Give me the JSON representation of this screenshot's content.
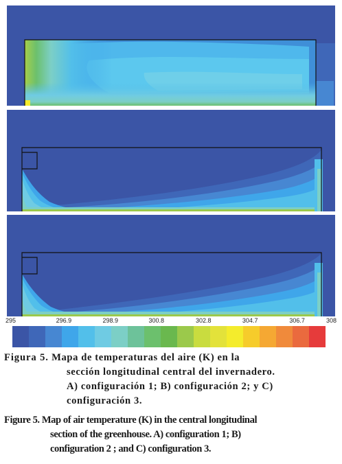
{
  "colorbar": {
    "tick_labels": [
      "295",
      "296.9",
      "298.9",
      "300.8",
      "302.8",
      "304.7",
      "306.7",
      "308"
    ],
    "colors": [
      "#3b55a6",
      "#3f67b8",
      "#4787d2",
      "#3fa6ea",
      "#52bfea",
      "#6fcbe3",
      "#7ccfc6",
      "#6dc29a",
      "#6cc06d",
      "#6ab84e",
      "#9bc94b",
      "#c9dc3f",
      "#e3e23a",
      "#f4ec2c",
      "#f6cc2b",
      "#f5a833",
      "#f08a3b",
      "#ea6a3e",
      "#e63b3b"
    ]
  },
  "panels": {
    "a": {
      "label": "A"
    },
    "b": {
      "label": "B"
    },
    "c": {
      "label": "C"
    }
  },
  "caption_es": {
    "label": "Figura 5.",
    "line1": "Mapa de temperaturas del aire (K) en la",
    "line2": "sección longitudinal central del invernadero.",
    "line3": "A) configuración 1; B) configuración 2; y C)",
    "line4": "configuración 3."
  },
  "caption_en": {
    "label": "Figure 5.",
    "line1": "Map of air temperature (K) in the central longitudinal",
    "line2": "section of the greenhouse. A) configuration 1; B)",
    "line3": "configuration 2 ; and C) configuration 3."
  }
}
